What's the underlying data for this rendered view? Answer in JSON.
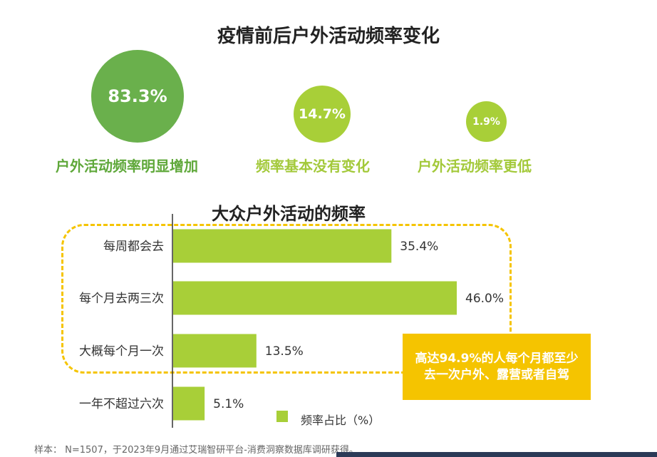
{
  "top_title": "疫情前后户外活动频率变化",
  "circles": [
    {
      "value": "83.3%",
      "label": "户外活动频率明显增加"
    },
    {
      "value": "14.7%",
      "label": "频率基本没有变化"
    },
    {
      "value": "1.9%",
      "label": "户外活动频率更低"
    }
  ],
  "chart_data": {
    "type": "bar",
    "orientation": "horizontal",
    "title": "大众户外活动的频率",
    "categories": [
      "每周都会去",
      "每个月去两三次",
      "大概每个月一次",
      "一年不超过六次"
    ],
    "values": [
      35.4,
      46.0,
      13.5,
      5.1
    ],
    "value_labels": [
      "35.4%",
      "46.0%",
      "13.5%",
      "5.1%"
    ],
    "legend": {
      "label": "频率占比（%）",
      "position": "bottom"
    },
    "xlim": [
      0,
      50
    ],
    "grid": false,
    "bar_color": "#a8cf38"
  },
  "callout": "高达94.9%的人每个月都至少去一次户外、露营或者自驾",
  "source": "样本： N=1507，于2023年9月通过艾瑞智研平台-消费洞察数据库调研获得。",
  "colors": {
    "accent_dark_green": "#6ab04c",
    "accent_light_green": "#a8cf38",
    "highlight_yellow": "#f5c400"
  }
}
